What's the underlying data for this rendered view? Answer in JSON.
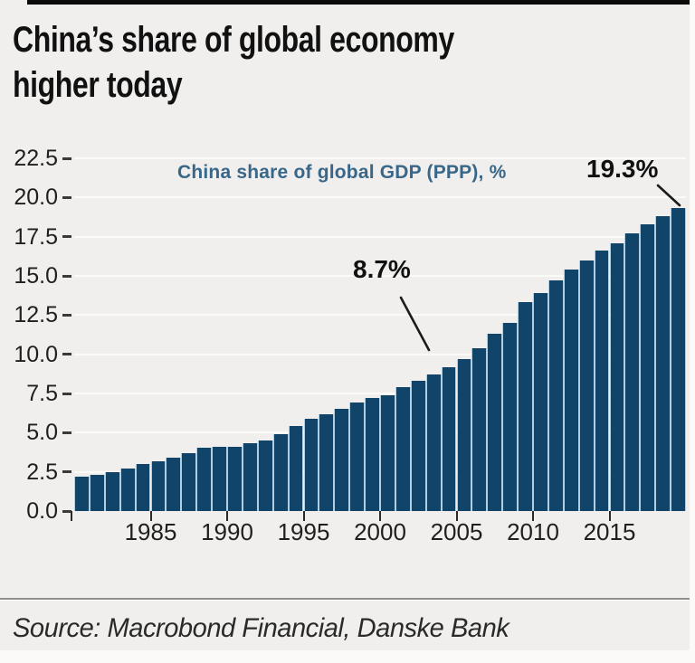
{
  "header": {
    "title_line1": "China’s share of global economy",
    "title_line2": "higher today"
  },
  "chart_data": {
    "type": "bar",
    "title": "China share of global GDP (PPP), %",
    "xlabel": "",
    "ylabel": "China share of global GDP (PPP), %",
    "x": [
      1981,
      1982,
      1983,
      1984,
      1985,
      1986,
      1987,
      1988,
      1989,
      1990,
      1991,
      1992,
      1993,
      1994,
      1995,
      1996,
      1997,
      1998,
      1999,
      2000,
      2001,
      2002,
      2003,
      2004,
      2005,
      2006,
      2007,
      2008,
      2009,
      2010,
      2011,
      2012,
      2013,
      2014,
      2015,
      2016,
      2017,
      2018,
      2019,
      2020
    ],
    "values": [
      2.2,
      2.3,
      2.5,
      2.7,
      3.0,
      3.2,
      3.4,
      3.7,
      4.05,
      4.1,
      4.1,
      4.3,
      4.5,
      4.9,
      5.4,
      5.9,
      6.2,
      6.5,
      6.9,
      7.2,
      7.4,
      7.9,
      8.3,
      8.7,
      9.2,
      9.7,
      10.4,
      11.3,
      12.0,
      13.3,
      13.9,
      14.7,
      15.4,
      16.0,
      16.6,
      17.1,
      17.7,
      18.3,
      18.8,
      19.3
    ],
    "ylim": [
      0,
      22.5
    ],
    "y_ticks": [
      0,
      2.5,
      5,
      7.5,
      10,
      12.5,
      15,
      17.5,
      20,
      22.5
    ],
    "y_tick_labels": [
      "0.0",
      "2.5",
      "5.0",
      "7.5",
      "10.0",
      "12.5",
      "15.0",
      "17.5",
      "20.0",
      "22.5"
    ],
    "x_tick_years": [
      1985,
      1990,
      1995,
      2000,
      2005,
      2010,
      2015
    ],
    "grid": "horizontal",
    "legend_position": "top-center",
    "annotations": [
      {
        "label": "8.7%",
        "year": 2004,
        "value": 8.7
      },
      {
        "label": "19.3%",
        "year": 2020,
        "value": 19.3
      }
    ],
    "colors": {
      "bar_fill": "#104469",
      "bar_edge": "#b0cfe0",
      "legend_text": "#38678a",
      "background": "#f0efed"
    }
  },
  "annotations": {
    "mid": "8.7%",
    "end": "19.3%"
  },
  "source": {
    "text": "Source: Macrobond Financial, Danske Bank"
  }
}
